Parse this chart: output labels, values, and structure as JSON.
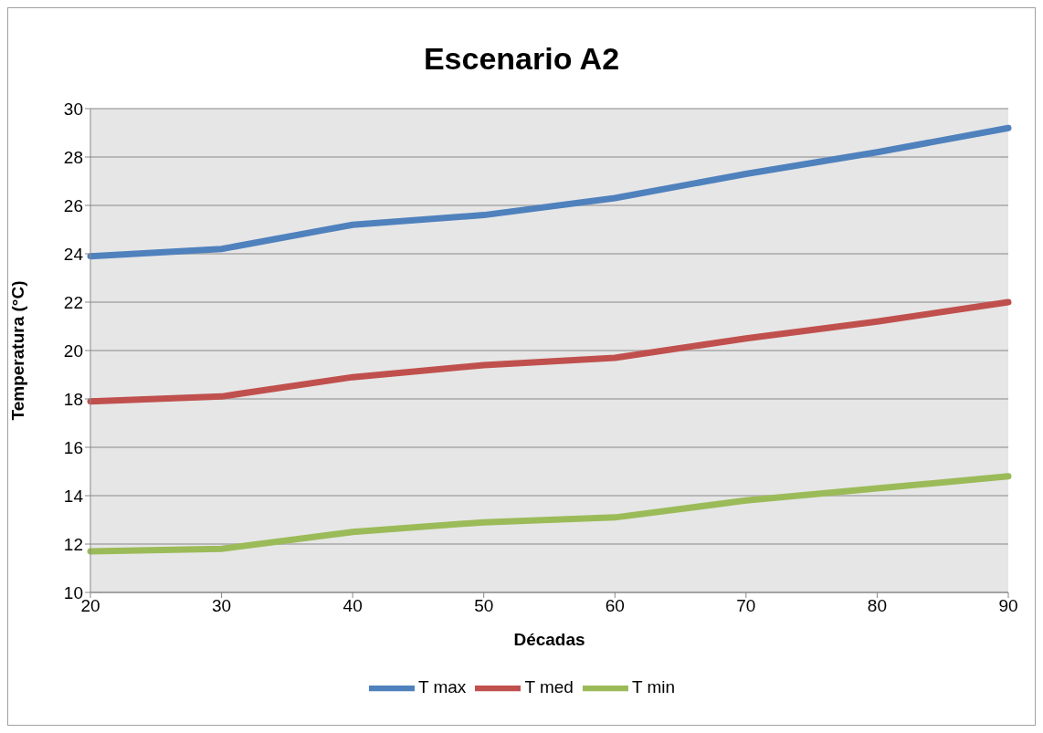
{
  "chart_data": {
    "type": "line",
    "title": "Escenario A2",
    "xlabel": "Décadas",
    "ylabel": "Temperatura (°C)",
    "categories": [
      "20",
      "30",
      "40",
      "50",
      "60",
      "70",
      "80",
      "90"
    ],
    "series": [
      {
        "name": "T max",
        "color": "#4f81bd",
        "values": [
          23.9,
          24.2,
          25.2,
          25.6,
          26.3,
          27.3,
          28.2,
          29.2
        ]
      },
      {
        "name": "T med",
        "color": "#c0504d",
        "values": [
          17.9,
          18.1,
          18.9,
          19.4,
          19.7,
          20.5,
          21.2,
          22.0
        ]
      },
      {
        "name": "T min",
        "color": "#9bbb59",
        "values": [
          11.7,
          11.8,
          12.5,
          12.9,
          13.1,
          13.8,
          14.3,
          14.8
        ]
      }
    ],
    "ylim": [
      10,
      30
    ],
    "yticks": [
      10,
      12,
      14,
      16,
      18,
      20,
      22,
      24,
      26,
      28,
      30
    ],
    "grid": "y",
    "legend": "bottom",
    "marker": "none",
    "line_style": "solid"
  }
}
